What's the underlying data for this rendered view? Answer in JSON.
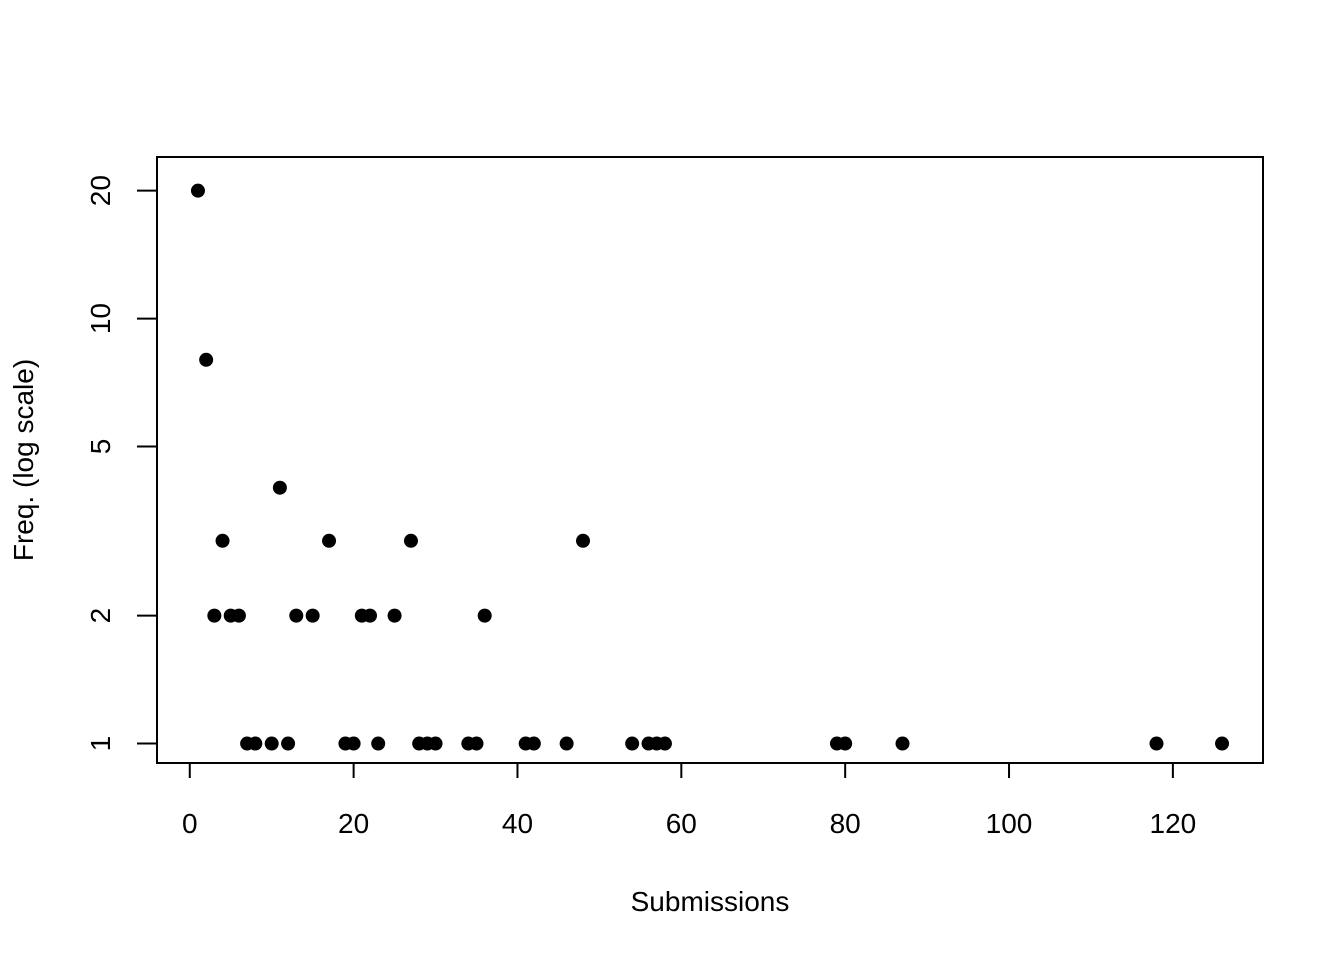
{
  "chart_data": {
    "type": "scatter",
    "xlabel": "Submissions",
    "ylabel": "Freq. (log scale)",
    "log_y": true,
    "xlim": [
      -4,
      131
    ],
    "ylim": [
      0.9,
      24
    ],
    "x_ticks": [
      0,
      20,
      40,
      60,
      80,
      100,
      120
    ],
    "y_ticks": [
      1,
      2,
      5,
      10,
      20
    ],
    "grid": false,
    "marker_color": "#000000",
    "series": [
      {
        "points": [
          [
            1,
            20
          ],
          [
            2,
            8
          ],
          [
            3,
            2
          ],
          [
            4,
            3
          ],
          [
            5,
            2
          ],
          [
            6,
            2
          ],
          [
            7,
            1
          ],
          [
            8,
            1
          ],
          [
            10,
            1
          ],
          [
            11,
            4
          ],
          [
            12,
            1
          ],
          [
            13,
            2
          ],
          [
            15,
            2
          ],
          [
            17,
            3
          ],
          [
            19,
            1
          ],
          [
            20,
            1
          ],
          [
            21,
            2
          ],
          [
            22,
            2
          ],
          [
            23,
            1
          ],
          [
            25,
            2
          ],
          [
            27,
            3
          ],
          [
            28,
            1
          ],
          [
            29,
            1
          ],
          [
            30,
            1
          ],
          [
            34,
            1
          ],
          [
            35,
            1
          ],
          [
            36,
            2
          ],
          [
            41,
            1
          ],
          [
            42,
            1
          ],
          [
            46,
            1
          ],
          [
            48,
            3
          ],
          [
            54,
            1
          ],
          [
            56,
            1
          ],
          [
            57,
            1
          ],
          [
            58,
            1
          ],
          [
            79,
            1
          ],
          [
            80,
            1
          ],
          [
            87,
            1
          ],
          [
            118,
            1
          ],
          [
            126,
            1
          ]
        ]
      }
    ]
  }
}
